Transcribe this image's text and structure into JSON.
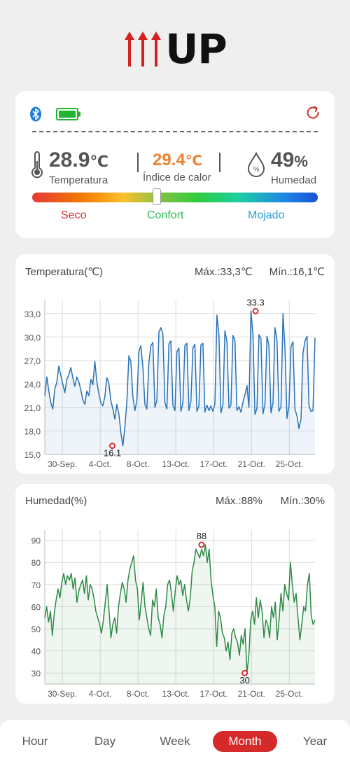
{
  "app": {
    "logo_text": "UP"
  },
  "status": {
    "temperature": {
      "value": "28.9",
      "unit": "℃",
      "label": "Temperatura"
    },
    "heat_index": {
      "value": "29.4",
      "unit": "℃",
      "label": "Índice de calor"
    },
    "humidity": {
      "value": "49",
      "unit": "%",
      "label": "Humedad"
    },
    "scale_labels": {
      "dry": "Seco",
      "comfort": "Confort",
      "wet": "Mojado"
    },
    "colors": {
      "heat_index": "#f08030",
      "dry": "#d32f2f",
      "comfort": "#2ebd59",
      "wet": "#2a9fd6"
    },
    "icons": [
      "bluetooth-icon",
      "battery-icon",
      "refresh-icon",
      "thermometer-icon",
      "humidity-drop-icon"
    ]
  },
  "temp_chart": {
    "title": "Temperatura(℃)",
    "max_label": "Máx.:33,3℃",
    "min_label": "Mín.:16,1℃"
  },
  "hum_chart": {
    "title": "Humedad(%)",
    "max_label": "Máx.:88%",
    "min_label": "Mín.:30%"
  },
  "tabs": [
    {
      "label": "Hour",
      "active": false
    },
    {
      "label": "Day",
      "active": false
    },
    {
      "label": "Week",
      "active": false
    },
    {
      "label": "Month",
      "active": true
    },
    {
      "label": "Year",
      "active": false
    }
  ],
  "chart_data": [
    {
      "type": "line",
      "title": "Temperatura(℃)",
      "color": "#2a72b5",
      "x_tick_labels": [
        "30-Sep.",
        "4-Oct.",
        "8-Oct.",
        "13-Oct.",
        "17-Oct.",
        "21-Oct.",
        "25-Oct."
      ],
      "y_ticks": [
        "15,0",
        "18,0",
        "21,0",
        "24,0",
        "27,0",
        "30,0",
        "33,0"
      ],
      "ylim": [
        15,
        34.5
      ],
      "grid": true,
      "annotations": [
        {
          "label": "33.3",
          "x_index": 0.78,
          "value": 33.3,
          "type": "max"
        },
        {
          "label": "16.1",
          "x_index": 0.25,
          "value": 16.1,
          "type": "min"
        }
      ],
      "series": [
        {
          "values": [
            22.5,
            24.9,
            23.1,
            21.6,
            20.8,
            23.4,
            24.2,
            26.3,
            25.1,
            24.0,
            22.9,
            24.6,
            25.2,
            26.1,
            24.8,
            23.7,
            24.9,
            24.3,
            23.2,
            22.0,
            21.4,
            23.1,
            22.5,
            24.6,
            23.9,
            26.9,
            24.3,
            22.8,
            21.6,
            21.2,
            22.4,
            24.8,
            24.1,
            21.9,
            20.8,
            19.5,
            21.4,
            20.2,
            17.8,
            16.1,
            18.5,
            21.7,
            27.6,
            26.9,
            22.4,
            20.6,
            21.9,
            28.1,
            28.9,
            26.2,
            21.4,
            20.8,
            26.7,
            28.9,
            29.3,
            21.0,
            21.9,
            30.6,
            31.2,
            30.4,
            21.6,
            20.8,
            29.1,
            29.5,
            21.3,
            20.6,
            28.1,
            28.6,
            20.5,
            21.6,
            28.9,
            29.2,
            20.6,
            21.8,
            28.6,
            29.1,
            20.5,
            21.2,
            29.0,
            29.2,
            20.4,
            21.3,
            20.6,
            21.2,
            20.5,
            21.5,
            32.8,
            30.2,
            20.3,
            21.4,
            30.8,
            29.4,
            20.9,
            21.3,
            30.2,
            29.6,
            20.6,
            21.1,
            20.4,
            21.7,
            22.6,
            23.8,
            21.0,
            33.3,
            30.3,
            20.1,
            20.9,
            30.3,
            29.8,
            20.2,
            21.4,
            30.1,
            28.9,
            20.3,
            21.6,
            31.2,
            29.6,
            20.5,
            21.1,
            33.0,
            28.6,
            19.6,
            21.2,
            28.8,
            29.4,
            20.8,
            19.9,
            18.3,
            19.5,
            27.9,
            29.5,
            30.1,
            21.2,
            20.5,
            20.6,
            29.9
          ]
        }
      ]
    },
    {
      "type": "line",
      "title": "Humedad(%)",
      "color": "#2d8a46",
      "x_tick_labels": [
        "30-Sep.",
        "4-Oct.",
        "8-Oct.",
        "13-Oct.",
        "17-Oct.",
        "21-Oct.",
        "25-Oct."
      ],
      "y_ticks": [
        "30",
        "40",
        "50",
        "60",
        "70",
        "80",
        "90"
      ],
      "ylim": [
        25,
        94
      ],
      "grid": true,
      "annotations": [
        {
          "label": "88",
          "x_index": 0.58,
          "value": 88,
          "type": "max"
        },
        {
          "label": "30",
          "x_index": 0.74,
          "value": 30,
          "type": "min"
        }
      ],
      "series": [
        {
          "values": [
            55,
            60,
            53,
            58,
            47,
            57,
            63,
            68,
            64,
            71,
            75,
            70,
            74,
            72,
            75,
            68,
            73,
            62,
            67,
            70,
            72,
            66,
            74,
            63,
            70,
            68,
            64,
            58,
            55,
            52,
            48,
            54,
            62,
            70,
            58,
            46,
            52,
            55,
            48,
            60,
            66,
            71,
            68,
            62,
            72,
            77,
            80,
            83,
            72,
            68,
            54,
            62,
            71,
            60,
            55,
            50,
            47,
            63,
            60,
            68,
            55,
            52,
            46,
            56,
            60,
            70,
            72,
            66,
            58,
            67,
            74,
            70,
            72,
            65,
            70,
            63,
            58,
            64,
            76,
            80,
            86,
            84,
            82,
            86,
            83,
            88,
            80,
            86,
            72,
            65,
            60,
            42,
            58,
            55,
            48,
            46,
            40,
            44,
            36,
            48,
            50,
            46,
            44,
            38,
            47,
            43,
            50,
            30,
            38,
            54,
            58,
            52,
            64,
            55,
            63,
            58,
            46,
            54,
            52,
            46,
            60,
            55,
            62,
            45,
            54,
            66,
            58,
            70,
            66,
            63,
            80,
            70,
            62,
            66,
            55,
            45,
            52,
            60,
            58,
            70,
            75,
            56,
            52,
            54
          ]
        }
      ]
    }
  ]
}
